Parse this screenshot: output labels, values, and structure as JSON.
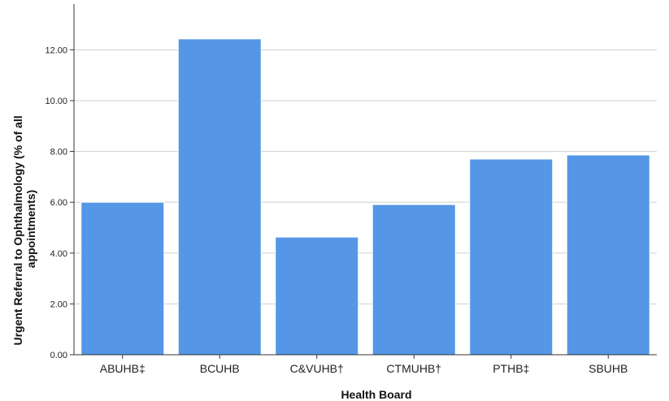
{
  "chart_data": {
    "type": "bar",
    "title": "",
    "xlabel": "Health Board",
    "ylabel_lines": [
      "Urgent Referral to Ophthalmology (% of all",
      "appointments)"
    ],
    "categories": [
      "ABUHB‡",
      "BCUHB",
      "C&VUHB†",
      "CTMUHB†",
      "PTHB‡",
      "SBUHB"
    ],
    "values": [
      6.0,
      12.43,
      4.63,
      5.91,
      7.7,
      7.86
    ],
    "yticks": [
      "0.00",
      "2.00",
      "4.00",
      "6.00",
      "8.00",
      "10.00",
      "12.00"
    ],
    "ylim": [
      0,
      13.8
    ],
    "grid": true,
    "legend": "none",
    "bar_color": "#5596e6",
    "bar_edge_color": "#ffffff",
    "grid_color": "#cfcfcf",
    "axis_color": "#333333"
  }
}
